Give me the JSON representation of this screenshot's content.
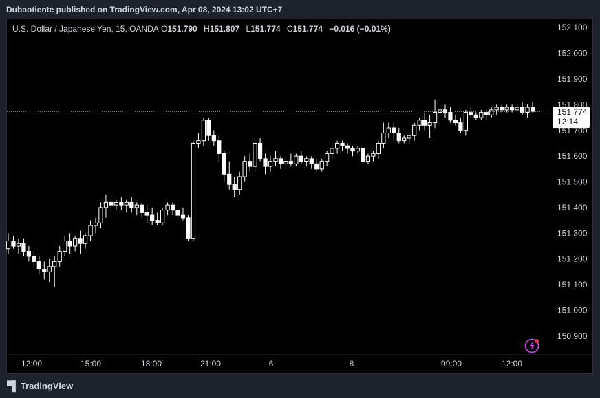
{
  "header": {
    "published": "Dubaotiente published on TradingView.com, Apr 08, 2024 13:02 UTC+7"
  },
  "legend": {
    "symbol": "U.S. Dollar / Japanese Yen, 15, OANDA",
    "o_label": "O",
    "o_value": "151.790",
    "h_label": "H",
    "h_value": "151.807",
    "l_label": "L",
    "l_value": "151.774",
    "c_label": "C",
    "c_value": "151.774",
    "change": "−0.016 (−0.01%)"
  },
  "price_tag": {
    "price": "151.774",
    "countdown": "12:14"
  },
  "footer": {
    "brand": "TradingView"
  },
  "colors": {
    "background": "#000000",
    "frame": "#1e222d",
    "text": "#d1d4dc",
    "candle": "#ffffff",
    "lightning": "#c940e6",
    "dot": "#f23645"
  },
  "icons": {
    "brand": "tradingview-logo-icon",
    "lightning": "lightning-icon"
  },
  "chart_data": {
    "type": "candlestick",
    "symbol": "USDJPY",
    "interval": "15",
    "ylim": [
      150.83,
      152.13
    ],
    "y_ticks": [
      "152.100",
      "152.000",
      "151.900",
      "151.800",
      "151.700",
      "151.600",
      "151.500",
      "151.400",
      "151.300",
      "151.200",
      "151.100",
      "151.000",
      "150.900"
    ],
    "x_ticks": [
      "12:00",
      "15:00",
      "18:00",
      "21:00",
      "6",
      "8",
      "09:00",
      "12:00"
    ],
    "last_price": 151.774,
    "candles": [
      {
        "o": 151.24,
        "h": 151.3,
        "l": 151.22,
        "c": 151.27
      },
      {
        "o": 151.27,
        "h": 151.29,
        "l": 151.24,
        "c": 151.25
      },
      {
        "o": 151.25,
        "h": 151.28,
        "l": 151.22,
        "c": 151.26
      },
      {
        "o": 151.26,
        "h": 151.28,
        "l": 151.21,
        "c": 151.23
      },
      {
        "o": 151.23,
        "h": 151.25,
        "l": 151.19,
        "c": 151.21
      },
      {
        "o": 151.21,
        "h": 151.23,
        "l": 151.17,
        "c": 151.19
      },
      {
        "o": 151.19,
        "h": 151.21,
        "l": 151.14,
        "c": 151.16
      },
      {
        "o": 151.16,
        "h": 151.19,
        "l": 151.12,
        "c": 151.15
      },
      {
        "o": 151.15,
        "h": 151.2,
        "l": 151.11,
        "c": 151.17
      },
      {
        "o": 151.17,
        "h": 151.21,
        "l": 151.09,
        "c": 151.19
      },
      {
        "o": 151.19,
        "h": 151.25,
        "l": 151.17,
        "c": 151.23
      },
      {
        "o": 151.23,
        "h": 151.29,
        "l": 151.21,
        "c": 151.27
      },
      {
        "o": 151.27,
        "h": 151.3,
        "l": 151.22,
        "c": 151.25
      },
      {
        "o": 151.25,
        "h": 151.29,
        "l": 151.23,
        "c": 151.28
      },
      {
        "o": 151.28,
        "h": 151.31,
        "l": 151.22,
        "c": 151.26
      },
      {
        "o": 151.26,
        "h": 151.3,
        "l": 151.24,
        "c": 151.29
      },
      {
        "o": 151.29,
        "h": 151.35,
        "l": 151.27,
        "c": 151.33
      },
      {
        "o": 151.33,
        "h": 151.36,
        "l": 151.3,
        "c": 151.34
      },
      {
        "o": 151.34,
        "h": 151.42,
        "l": 151.32,
        "c": 151.4
      },
      {
        "o": 151.4,
        "h": 151.45,
        "l": 151.36,
        "c": 151.42
      },
      {
        "o": 151.42,
        "h": 151.44,
        "l": 151.38,
        "c": 151.41
      },
      {
        "o": 151.41,
        "h": 151.43,
        "l": 151.39,
        "c": 151.42
      },
      {
        "o": 151.42,
        "h": 151.44,
        "l": 151.39,
        "c": 151.41
      },
      {
        "o": 151.41,
        "h": 151.43,
        "l": 151.38,
        "c": 151.42
      },
      {
        "o": 151.42,
        "h": 151.44,
        "l": 151.38,
        "c": 151.4
      },
      {
        "o": 151.4,
        "h": 151.42,
        "l": 151.37,
        "c": 151.41
      },
      {
        "o": 151.41,
        "h": 151.42,
        "l": 151.36,
        "c": 151.38
      },
      {
        "o": 151.38,
        "h": 151.41,
        "l": 151.34,
        "c": 151.37
      },
      {
        "o": 151.37,
        "h": 151.4,
        "l": 151.33,
        "c": 151.35
      },
      {
        "o": 151.35,
        "h": 151.38,
        "l": 151.33,
        "c": 151.34
      },
      {
        "o": 151.34,
        "h": 151.4,
        "l": 151.33,
        "c": 151.39
      },
      {
        "o": 151.39,
        "h": 151.42,
        "l": 151.37,
        "c": 151.41
      },
      {
        "o": 151.41,
        "h": 151.42,
        "l": 151.37,
        "c": 151.39
      },
      {
        "o": 151.39,
        "h": 151.43,
        "l": 151.36,
        "c": 151.37
      },
      {
        "o": 151.37,
        "h": 151.4,
        "l": 151.35,
        "c": 151.36
      },
      {
        "o": 151.36,
        "h": 151.37,
        "l": 151.27,
        "c": 151.28
      },
      {
        "o": 151.28,
        "h": 151.66,
        "l": 151.27,
        "c": 151.65
      },
      {
        "o": 151.65,
        "h": 151.69,
        "l": 151.63,
        "c": 151.66
      },
      {
        "o": 151.66,
        "h": 151.75,
        "l": 151.64,
        "c": 151.74
      },
      {
        "o": 151.74,
        "h": 151.75,
        "l": 151.66,
        "c": 151.68
      },
      {
        "o": 151.68,
        "h": 151.7,
        "l": 151.64,
        "c": 151.66
      },
      {
        "o": 151.66,
        "h": 151.68,
        "l": 151.58,
        "c": 151.61
      },
      {
        "o": 151.61,
        "h": 151.62,
        "l": 151.5,
        "c": 151.53
      },
      {
        "o": 151.53,
        "h": 151.58,
        "l": 151.47,
        "c": 151.49
      },
      {
        "o": 151.49,
        "h": 151.52,
        "l": 151.44,
        "c": 151.47
      },
      {
        "o": 151.47,
        "h": 151.54,
        "l": 151.45,
        "c": 151.52
      },
      {
        "o": 151.52,
        "h": 151.6,
        "l": 151.5,
        "c": 151.58
      },
      {
        "o": 151.58,
        "h": 151.61,
        "l": 151.54,
        "c": 151.56
      },
      {
        "o": 151.56,
        "h": 151.66,
        "l": 151.54,
        "c": 151.65
      },
      {
        "o": 151.65,
        "h": 151.67,
        "l": 151.58,
        "c": 151.59
      },
      {
        "o": 151.59,
        "h": 151.61,
        "l": 151.53,
        "c": 151.56
      },
      {
        "o": 151.56,
        "h": 151.6,
        "l": 151.54,
        "c": 151.58
      },
      {
        "o": 151.58,
        "h": 151.62,
        "l": 151.56,
        "c": 151.59
      },
      {
        "o": 151.59,
        "h": 151.6,
        "l": 151.55,
        "c": 151.57
      },
      {
        "o": 151.57,
        "h": 151.6,
        "l": 151.55,
        "c": 151.58
      },
      {
        "o": 151.58,
        "h": 151.61,
        "l": 151.56,
        "c": 151.57
      },
      {
        "o": 151.57,
        "h": 151.61,
        "l": 151.56,
        "c": 151.6
      },
      {
        "o": 151.6,
        "h": 151.62,
        "l": 151.57,
        "c": 151.58
      },
      {
        "o": 151.58,
        "h": 151.6,
        "l": 151.56,
        "c": 151.59
      },
      {
        "o": 151.59,
        "h": 151.6,
        "l": 151.55,
        "c": 151.57
      },
      {
        "o": 151.57,
        "h": 151.59,
        "l": 151.54,
        "c": 151.55
      },
      {
        "o": 151.55,
        "h": 151.59,
        "l": 151.54,
        "c": 151.58
      },
      {
        "o": 151.58,
        "h": 151.62,
        "l": 151.56,
        "c": 151.61
      },
      {
        "o": 151.61,
        "h": 151.65,
        "l": 151.59,
        "c": 151.63
      },
      {
        "o": 151.63,
        "h": 151.66,
        "l": 151.61,
        "c": 151.65
      },
      {
        "o": 151.65,
        "h": 151.66,
        "l": 151.62,
        "c": 151.64
      },
      {
        "o": 151.64,
        "h": 151.65,
        "l": 151.61,
        "c": 151.63
      },
      {
        "o": 151.63,
        "h": 151.64,
        "l": 151.6,
        "c": 151.62
      },
      {
        "o": 151.62,
        "h": 151.64,
        "l": 151.61,
        "c": 151.63
      },
      {
        "o": 151.63,
        "h": 151.64,
        "l": 151.57,
        "c": 151.58
      },
      {
        "o": 151.58,
        "h": 151.61,
        "l": 151.57,
        "c": 151.6
      },
      {
        "o": 151.6,
        "h": 151.62,
        "l": 151.58,
        "c": 151.61
      },
      {
        "o": 151.61,
        "h": 151.66,
        "l": 151.59,
        "c": 151.65
      },
      {
        "o": 151.65,
        "h": 151.73,
        "l": 151.63,
        "c": 151.69
      },
      {
        "o": 151.69,
        "h": 151.73,
        "l": 151.67,
        "c": 151.71
      },
      {
        "o": 151.71,
        "h": 151.73,
        "l": 151.66,
        "c": 151.69
      },
      {
        "o": 151.69,
        "h": 151.71,
        "l": 151.65,
        "c": 151.66
      },
      {
        "o": 151.66,
        "h": 151.68,
        "l": 151.65,
        "c": 151.67
      },
      {
        "o": 151.67,
        "h": 151.69,
        "l": 151.65,
        "c": 151.68
      },
      {
        "o": 151.68,
        "h": 151.73,
        "l": 151.66,
        "c": 151.72
      },
      {
        "o": 151.72,
        "h": 151.75,
        "l": 151.7,
        "c": 151.74
      },
      {
        "o": 151.74,
        "h": 151.77,
        "l": 151.7,
        "c": 151.72
      },
      {
        "o": 151.72,
        "h": 151.76,
        "l": 151.67,
        "c": 151.73
      },
      {
        "o": 151.73,
        "h": 151.82,
        "l": 151.71,
        "c": 151.77
      },
      {
        "o": 151.77,
        "h": 151.81,
        "l": 151.74,
        "c": 151.78
      },
      {
        "o": 151.78,
        "h": 151.8,
        "l": 151.75,
        "c": 151.77
      },
      {
        "o": 151.77,
        "h": 151.79,
        "l": 151.73,
        "c": 151.74
      },
      {
        "o": 151.74,
        "h": 151.76,
        "l": 151.72,
        "c": 151.73
      },
      {
        "o": 151.73,
        "h": 151.75,
        "l": 151.69,
        "c": 151.7
      },
      {
        "o": 151.7,
        "h": 151.78,
        "l": 151.68,
        "c": 151.77
      },
      {
        "o": 151.77,
        "h": 151.79,
        "l": 151.75,
        "c": 151.76
      },
      {
        "o": 151.76,
        "h": 151.77,
        "l": 151.74,
        "c": 151.75
      },
      {
        "o": 151.75,
        "h": 151.78,
        "l": 151.74,
        "c": 151.77
      },
      {
        "o": 151.77,
        "h": 151.78,
        "l": 151.74,
        "c": 151.76
      },
      {
        "o": 151.76,
        "h": 151.79,
        "l": 151.75,
        "c": 151.78
      },
      {
        "o": 151.78,
        "h": 151.8,
        "l": 151.76,
        "c": 151.79
      },
      {
        "o": 151.79,
        "h": 151.8,
        "l": 151.77,
        "c": 151.78
      },
      {
        "o": 151.78,
        "h": 151.8,
        "l": 151.77,
        "c": 151.79
      },
      {
        "o": 151.79,
        "h": 151.8,
        "l": 151.77,
        "c": 151.78
      },
      {
        "o": 151.78,
        "h": 151.8,
        "l": 151.77,
        "c": 151.79
      },
      {
        "o": 151.79,
        "h": 151.81,
        "l": 151.76,
        "c": 151.77
      },
      {
        "o": 151.77,
        "h": 151.8,
        "l": 151.75,
        "c": 151.79
      },
      {
        "o": 151.79,
        "h": 151.81,
        "l": 151.77,
        "c": 151.774
      }
    ]
  }
}
